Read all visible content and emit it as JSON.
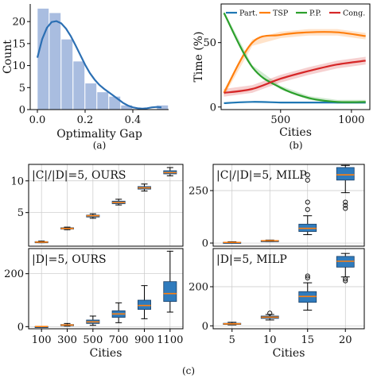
{
  "captions": {
    "a": "(a)",
    "b": "(b)",
    "c": "(c)"
  },
  "chart_data": [
    {
      "id": "a",
      "type": "bar",
      "subtype": "histogram-with-kde",
      "xlabel": "Optimality Gap",
      "ylabel": "Count",
      "xlim": [
        -0.03,
        0.55
      ],
      "ylim": [
        0,
        24
      ],
      "xticks": [
        0.0,
        0.2,
        0.4
      ],
      "xtick_labels": [
        "0.0",
        "0.2",
        "0.4"
      ],
      "yticks": [
        0,
        5,
        10,
        15,
        20
      ],
      "ytick_labels": [
        "0",
        "5",
        "10",
        "15",
        "20"
      ],
      "bin_edges": [
        0.0,
        0.05,
        0.1,
        0.15,
        0.2,
        0.25,
        0.3,
        0.35,
        0.4,
        0.45,
        0.5
      ],
      "counts": [
        23,
        22,
        16,
        11,
        6,
        4,
        3,
        1,
        0,
        0,
        1
      ],
      "kde": {
        "x": [
          0.0,
          0.02,
          0.04,
          0.06,
          0.08,
          0.1,
          0.12,
          0.14,
          0.16,
          0.18,
          0.2,
          0.22,
          0.24,
          0.26,
          0.28,
          0.3,
          0.32,
          0.34,
          0.36,
          0.38,
          0.4,
          0.42,
          0.44,
          0.46,
          0.48,
          0.5,
          0.52
        ],
        "y": [
          11.8,
          16.0,
          18.6,
          19.9,
          20.1,
          19.6,
          18.4,
          16.7,
          14.6,
          12.4,
          10.2,
          8.3,
          6.8,
          5.6,
          4.7,
          3.9,
          3.1,
          2.3,
          1.5,
          0.9,
          0.5,
          0.3,
          0.2,
          0.3,
          0.5,
          0.6,
          0.5
        ]
      },
      "colors": {
        "bar": "#a9bde0",
        "kde": "#2b6fb3"
      }
    },
    {
      "id": "b",
      "type": "line",
      "xlabel": "Cities",
      "ylabel": "Time (%)",
      "xlim": [
        80,
        1130
      ],
      "ylim": [
        -2,
        80
      ],
      "xticks": [
        500,
        1000
      ],
      "xtick_labels": [
        "500",
        "1000"
      ],
      "yticks": [
        0,
        50
      ],
      "ytick_labels": [
        "0",
        "50"
      ],
      "legend": "top",
      "x": [
        100,
        300,
        500,
        700,
        900,
        1100
      ],
      "series": [
        {
          "name": "Part.",
          "color": "#1f77b4",
          "values": [
            3,
            4,
            3.5,
            3.5,
            3.5,
            3.5
          ],
          "band": 0.5
        },
        {
          "name": "TSP",
          "color": "#ff7f0e",
          "values": [
            11,
            50,
            56,
            58,
            58,
            55
          ],
          "band": 2.5
        },
        {
          "name": "P.P.",
          "color": "#2ca02c",
          "values": [
            73,
            31,
            15,
            7,
            4,
            4
          ],
          "band": 1.5
        },
        {
          "name": "Cong.",
          "color": "#d62728",
          "values": [
            11,
            14,
            22,
            28,
            33,
            36
          ],
          "band": 3
        }
      ]
    },
    {
      "id": "c1",
      "type": "box",
      "title": "|C|/|D|=5, OURS",
      "categories": [
        "100",
        "300",
        "500",
        "700",
        "900",
        "1100"
      ],
      "ylim": [
        -0.3,
        12.6
      ],
      "yticks": [
        5,
        10
      ],
      "ytick_labels": [
        "5",
        "10"
      ],
      "boxes": [
        {
          "whislo": 0.25,
          "q1": 0.3,
          "med": 0.35,
          "q3": 0.42,
          "whishi": 0.5,
          "fliers": []
        },
        {
          "whislo": 2.3,
          "q1": 2.4,
          "med": 2.5,
          "q3": 2.6,
          "whishi": 2.7,
          "fliers": []
        },
        {
          "whislo": 4.1,
          "q1": 4.3,
          "med": 4.5,
          "q3": 4.6,
          "whishi": 4.8,
          "fliers": []
        },
        {
          "whislo": 6.2,
          "q1": 6.4,
          "med": 6.6,
          "q3": 6.8,
          "whishi": 7.1,
          "fliers": []
        },
        {
          "whislo": 8.4,
          "q1": 8.7,
          "med": 8.9,
          "q3": 9.1,
          "whishi": 9.5,
          "fliers": []
        },
        {
          "whislo": 10.8,
          "q1": 11.1,
          "med": 11.3,
          "q3": 11.6,
          "whishi": 12.1,
          "fliers": []
        }
      ]
    },
    {
      "id": "c2",
      "type": "box",
      "title": "|C|/|D|=5, MILP",
      "categories": [
        "5",
        "10",
        "15",
        "20"
      ],
      "ylim": [
        -15,
        375
      ],
      "yticks": [
        0,
        250
      ],
      "ytick_labels": [
        "0",
        "250"
      ],
      "boxes": [
        {
          "whislo": 1,
          "q1": 2,
          "med": 3,
          "q3": 4,
          "whishi": 6,
          "fliers": []
        },
        {
          "whislo": 7,
          "q1": 9,
          "med": 11,
          "q3": 12,
          "whishi": 14,
          "fliers": []
        },
        {
          "whislo": 40,
          "q1": 55,
          "med": 70,
          "q3": 90,
          "whishi": 130,
          "fliers": [
            160,
            195,
            300,
            325
          ]
        },
        {
          "whislo": 240,
          "q1": 300,
          "med": 325,
          "q3": 360,
          "whishi": 370,
          "fliers": [
            195,
            180,
            165
          ]
        }
      ]
    },
    {
      "id": "c3",
      "type": "box",
      "title": "|D|=5, OURS",
      "xlabel": "Cities",
      "categories": [
        "100",
        "300",
        "500",
        "700",
        "900",
        "1100"
      ],
      "ylim": [
        -8,
        295
      ],
      "yticks": [
        0,
        200
      ],
      "ytick_labels": [
        "0",
        "200"
      ],
      "boxes": [
        {
          "whislo": 0.2,
          "q1": 0.4,
          "med": 0.5,
          "q3": 0.7,
          "whishi": 0.9,
          "fliers": []
        },
        {
          "whislo": 2,
          "q1": 4,
          "med": 6,
          "q3": 8,
          "whishi": 12,
          "fliers": []
        },
        {
          "whislo": 5,
          "q1": 12,
          "med": 18,
          "q3": 25,
          "whishi": 40,
          "fliers": []
        },
        {
          "whislo": 15,
          "q1": 35,
          "med": 48,
          "q3": 60,
          "whishi": 90,
          "fliers": []
        },
        {
          "whislo": 30,
          "q1": 65,
          "med": 80,
          "q3": 100,
          "whishi": 155,
          "fliers": []
        },
        {
          "whislo": 55,
          "q1": 95,
          "med": 125,
          "q3": 170,
          "whishi": 285,
          "fliers": []
        }
      ]
    },
    {
      "id": "c4",
      "type": "box",
      "title": "|D|=5, MILP",
      "xlabel": "Cities",
      "categories": [
        "5",
        "10",
        "15",
        "20"
      ],
      "ylim": [
        -15,
        395
      ],
      "yticks": [
        0,
        200
      ],
      "ytick_labels": [
        "0",
        "200"
      ],
      "boxes": [
        {
          "whislo": 5,
          "q1": 8,
          "med": 10,
          "q3": 13,
          "whishi": 18,
          "fliers": []
        },
        {
          "whislo": 30,
          "q1": 38,
          "med": 44,
          "q3": 50,
          "whishi": 58,
          "fliers": [
            65
          ]
        },
        {
          "whislo": 80,
          "q1": 120,
          "med": 150,
          "q3": 175,
          "whishi": 220,
          "fliers": [
            245,
            255
          ]
        },
        {
          "whislo": 250,
          "q1": 300,
          "med": 330,
          "q3": 355,
          "whishi": 370,
          "fliers": [
            240,
            230
          ]
        }
      ]
    }
  ]
}
